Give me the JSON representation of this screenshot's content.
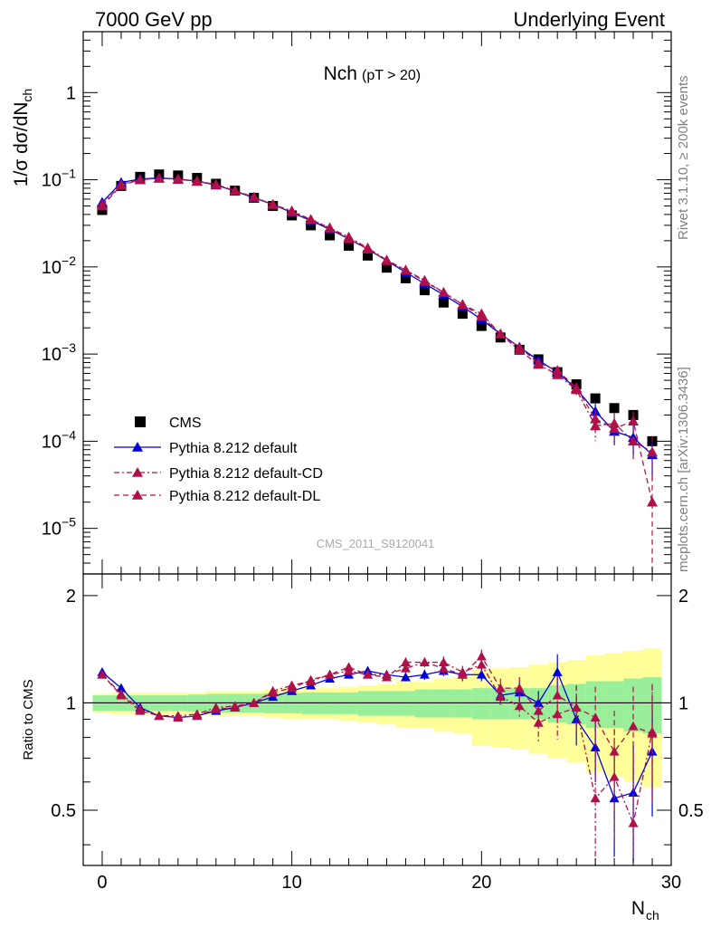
{
  "header": {
    "left": "7000 GeV pp",
    "right": "Underlying Event",
    "plot_title": "Nch",
    "plot_title_sub": "(pT > 20)",
    "watermark": "CMS_2011_S9120041",
    "side_top": "Rivet 3.1.10, ≥ 200k events",
    "side_bottom": "mcplots.cern.ch [arXiv:1306.3436]"
  },
  "chart_data": [
    {
      "type": "scatter",
      "title": "Nch (pT > 20)",
      "ylabel": "1/σ dσ/dN_ch",
      "xlabel": "N_ch",
      "xlim": [
        -1,
        30
      ],
      "ylim": [
        3e-06,
        5
      ],
      "yscale": "log",
      "y_ticks": [
        {
          "v": 1e-05,
          "base": "10",
          "exp": "−5"
        },
        {
          "v": 0.0001,
          "base": "10",
          "exp": "−4"
        },
        {
          "v": 0.001,
          "base": "10",
          "exp": "−3"
        },
        {
          "v": 0.01,
          "base": "10",
          "exp": "−2"
        },
        {
          "v": 0.1,
          "base": "10",
          "exp": "−1"
        },
        {
          "v": 1,
          "base": "1",
          "exp": ""
        }
      ],
      "legend": [
        "CMS",
        "Pythia 8.212 default",
        "Pythia 8.212 default-CD",
        "Pythia 8.212 default-DL"
      ],
      "legend_position": "bottom-left",
      "x": [
        0,
        1,
        2,
        3,
        4,
        5,
        6,
        7,
        8,
        9,
        10,
        11,
        12,
        13,
        14,
        15,
        16,
        17,
        18,
        19,
        20,
        21,
        22,
        23,
        24,
        25,
        26,
        27,
        28,
        29
      ],
      "series": [
        {
          "name": "CMS",
          "marker": "square",
          "color": "#000000",
          "values": [
            0.045,
            0.085,
            0.108,
            0.115,
            0.112,
            0.105,
            0.09,
            0.075,
            0.062,
            0.05,
            0.039,
            0.03,
            0.023,
            0.0175,
            0.0135,
            0.0098,
            0.0074,
            0.0054,
            0.0039,
            0.0029,
            0.0021,
            0.00155,
            0.00112,
            0.00087,
            0.00062,
            0.00045,
            0.00031,
            0.00024,
            0.0002,
            0.0001
          ]
        },
        {
          "name": "Pythia 8.212 default",
          "marker": "triangle",
          "color": "#0000dd",
          "line": "solid",
          "values": [
            0.055,
            0.093,
            0.102,
            0.105,
            0.102,
            0.096,
            0.087,
            0.074,
            0.062,
            0.052,
            0.042,
            0.034,
            0.027,
            0.021,
            0.016,
            0.0118,
            0.0087,
            0.0064,
            0.0048,
            0.0035,
            0.0025,
            0.0017,
            0.0012,
            0.00085,
            0.00062,
            0.0004,
            0.00022,
            0.00013,
            0.00011,
            7e-05
          ],
          "errors": [
            0,
            0,
            0,
            0,
            0,
            0,
            0,
            0,
            0,
            0,
            0,
            0,
            0,
            0,
            0,
            0,
            0,
            0,
            0,
            0,
            0,
            0,
            0,
            0,
            5e-05,
            6e-05,
            5e-05,
            4e-05,
            4e-05,
            3e-05
          ]
        },
        {
          "name": "Pythia 8.212 default-CD",
          "marker": "triangle",
          "color": "#b0104a",
          "line": "dashdot",
          "values": [
            0.052,
            0.088,
            0.1,
            0.104,
            0.102,
            0.097,
            0.088,
            0.075,
            0.063,
            0.052,
            0.044,
            0.035,
            0.028,
            0.022,
            0.0165,
            0.012,
            0.0092,
            0.007,
            0.0051,
            0.0037,
            0.0027,
            0.0017,
            0.0011,
            0.00076,
            0.00058,
            0.00039,
            0.00015,
            0.00016,
            0.0001,
            7.5e-05
          ],
          "errors": [
            0,
            0,
            0,
            0,
            0,
            0,
            0,
            0,
            0,
            0,
            0,
            0,
            0,
            0,
            0,
            0,
            0,
            0,
            0,
            0,
            0,
            0,
            0,
            0,
            6e-05,
            6e-05,
            5e-05,
            5e-05,
            4e-05,
            4e-05
          ]
        },
        {
          "name": "Pythia 8.212 default-DL",
          "marker": "triangle",
          "color": "#b0104a",
          "line": "dashed",
          "values": [
            0.05,
            0.086,
            0.1,
            0.104,
            0.101,
            0.096,
            0.088,
            0.075,
            0.063,
            0.052,
            0.043,
            0.035,
            0.028,
            0.021,
            0.016,
            0.0118,
            0.0092,
            0.0068,
            0.0051,
            0.0037,
            0.0029,
            0.0017,
            0.0012,
            0.00079,
            0.00065,
            0.00041,
            0.00018,
            0.00014,
            0.00017,
            2e-05
          ],
          "errors": [
            0,
            0,
            0,
            0,
            0,
            0,
            0,
            0,
            0,
            0,
            0,
            0,
            0,
            0,
            0,
            0,
            0,
            0,
            0,
            0,
            0,
            0,
            0,
            0,
            6e-05,
            6e-05,
            5e-05,
            5e-05,
            5e-05,
            2e-05
          ]
        }
      ]
    },
    {
      "type": "line",
      "ylabel": "Ratio to CMS",
      "xlabel": "N_ch",
      "xlim": [
        -1,
        30
      ],
      "ylim": [
        0.35,
        2.3
      ],
      "yscale": "log",
      "y_ticks": [
        0.5,
        1,
        2
      ],
      "x_ticks": [
        0,
        10,
        20,
        30
      ],
      "x": [
        0,
        1,
        2,
        3,
        4,
        5,
        6,
        7,
        8,
        9,
        10,
        11,
        12,
        13,
        14,
        15,
        16,
        17,
        18,
        19,
        20,
        21,
        22,
        23,
        24,
        25,
        26,
        27,
        28,
        29
      ],
      "bands": {
        "green_half": [
          0.05,
          0.05,
          0.05,
          0.05,
          0.05,
          0.055,
          0.06,
          0.06,
          0.06,
          0.065,
          0.065,
          0.07,
          0.07,
          0.07,
          0.08,
          0.08,
          0.08,
          0.09,
          0.09,
          0.09,
          0.1,
          0.1,
          0.1,
          0.1,
          0.12,
          0.13,
          0.15,
          0.15,
          0.17,
          0.18
        ],
        "yellow_half": [
          0.06,
          0.07,
          0.07,
          0.07,
          0.07,
          0.07,
          0.08,
          0.08,
          0.08,
          0.09,
          0.1,
          0.1,
          0.1,
          0.11,
          0.12,
          0.13,
          0.15,
          0.15,
          0.17,
          0.18,
          0.24,
          0.25,
          0.26,
          0.28,
          0.3,
          0.32,
          0.36,
          0.38,
          0.4,
          0.42
        ]
      },
      "series": [
        {
          "name": "Pythia 8.212 default",
          "color": "#0000dd",
          "line": "solid",
          "values": [
            1.22,
            1.1,
            0.97,
            0.92,
            0.91,
            0.92,
            0.95,
            0.97,
            1.0,
            1.04,
            1.08,
            1.12,
            1.17,
            1.2,
            1.23,
            1.2,
            1.18,
            1.2,
            1.23,
            1.2,
            1.2,
            1.05,
            1.07,
            1.0,
            1.22,
            0.9,
            0.75,
            0.54,
            0.56,
            0.73
          ],
          "errors": [
            0.02,
            0.02,
            0.02,
            0.01,
            0.01,
            0.01,
            0.01,
            0.01,
            0.01,
            0.02,
            0.02,
            0.02,
            0.02,
            0.03,
            0.03,
            0.03,
            0.03,
            0.04,
            0.04,
            0.05,
            0.05,
            0.06,
            0.07,
            0.08,
            0.15,
            0.14,
            0.15,
            0.17,
            0.2,
            0.25
          ]
        },
        {
          "name": "Pythia 8.212 default-CD",
          "color": "#b0104a",
          "line": "dashdot",
          "values": [
            1.2,
            1.06,
            0.96,
            0.92,
            0.92,
            0.93,
            0.97,
            0.98,
            1.0,
            1.08,
            1.12,
            1.15,
            1.2,
            1.23,
            1.2,
            1.2,
            1.25,
            1.3,
            1.3,
            1.22,
            1.28,
            1.04,
            0.98,
            0.88,
            0.93,
            0.97,
            0.54,
            0.62,
            0.46,
            0.83
          ],
          "errors": [
            0.02,
            0.02,
            0.02,
            0.01,
            0.01,
            0.01,
            0.01,
            0.01,
            0.01,
            0.02,
            0.02,
            0.02,
            0.02,
            0.03,
            0.03,
            0.03,
            0.04,
            0.04,
            0.05,
            0.05,
            0.06,
            0.07,
            0.08,
            0.1,
            0.14,
            0.15,
            0.2,
            0.22,
            0.25,
            0.3
          ]
        },
        {
          "name": "Pythia 8.212 default-DL",
          "color": "#b0104a",
          "line": "dashed",
          "values": [
            1.2,
            1.05,
            0.95,
            0.92,
            0.91,
            0.92,
            0.96,
            0.97,
            1.0,
            1.07,
            1.1,
            1.16,
            1.2,
            1.26,
            1.2,
            1.18,
            1.3,
            1.3,
            1.25,
            1.2,
            1.35,
            1.1,
            1.1,
            0.95,
            1.05,
            0.97,
            0.91,
            0.73,
            0.86,
            0.82
          ],
          "errors": [
            0.02,
            0.02,
            0.02,
            0.01,
            0.01,
            0.01,
            0.01,
            0.01,
            0.01,
            0.02,
            0.02,
            0.02,
            0.02,
            0.03,
            0.03,
            0.03,
            0.04,
            0.04,
            0.05,
            0.05,
            0.06,
            0.07,
            0.08,
            0.1,
            0.14,
            0.15,
            0.2,
            0.22,
            0.25,
            0.3
          ]
        }
      ]
    }
  ]
}
